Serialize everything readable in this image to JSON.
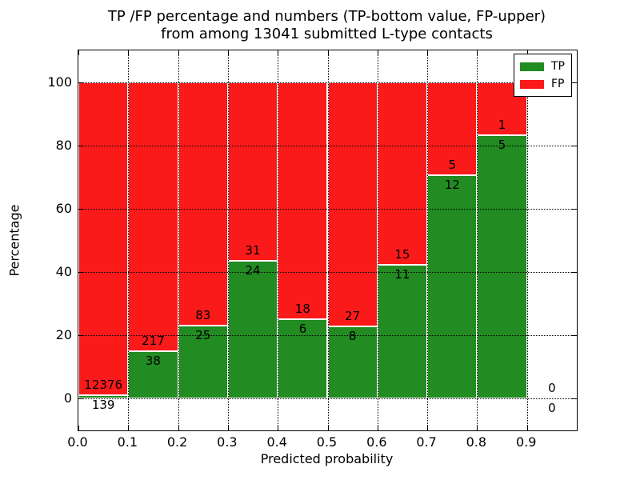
{
  "figure": {
    "title_line1": "TP /FP percentage and numbers (TP-bottom value, FP-upper)",
    "title_line2": "from among 13041 submitted L-type contacts"
  },
  "chart_data": {
    "type": "bar",
    "stacked": true,
    "normalization": "each bin scaled to 100 percent, TP on bottom, FP on top",
    "title": "TP /FP percentage and numbers (TP-bottom value, FP-upper) from among 13041 submitted L-type contacts",
    "xlabel": "Predicted probability",
    "ylabel": "Percentage",
    "xlim": [
      0.0,
      1.0
    ],
    "ylim": [
      -10,
      110
    ],
    "x_ticks": [
      "0.0",
      "0.1",
      "0.2",
      "0.3",
      "0.4",
      "0.5",
      "0.6",
      "0.7",
      "0.8",
      "0.9"
    ],
    "x_tick_values": [
      0.0,
      0.1,
      0.2,
      0.3,
      0.4,
      0.5,
      0.6,
      0.7,
      0.8,
      0.9
    ],
    "y_ticks": [
      "0",
      "20",
      "40",
      "60",
      "80",
      "100"
    ],
    "y_tick_values": [
      0,
      20,
      40,
      60,
      80,
      100
    ],
    "grid": "dotted black, drawn on top of bars",
    "bin_width": 0.1,
    "bin_starts": [
      0.0,
      0.1,
      0.2,
      0.3,
      0.4,
      0.5,
      0.6,
      0.7,
      0.8,
      0.9
    ],
    "series": [
      {
        "name": "TP",
        "position": "bottom",
        "color": "#228b22",
        "values": [
          139,
          38,
          25,
          24,
          6,
          8,
          11,
          12,
          5,
          0
        ]
      },
      {
        "name": "FP",
        "position": "top",
        "color": "#fa1a1a",
        "values": [
          12376,
          217,
          83,
          31,
          18,
          27,
          15,
          5,
          1,
          0
        ]
      }
    ],
    "bar_edge_color": "#ffffff",
    "legend": {
      "position": "upper right",
      "entries": [
        "TP",
        "FP"
      ]
    }
  }
}
